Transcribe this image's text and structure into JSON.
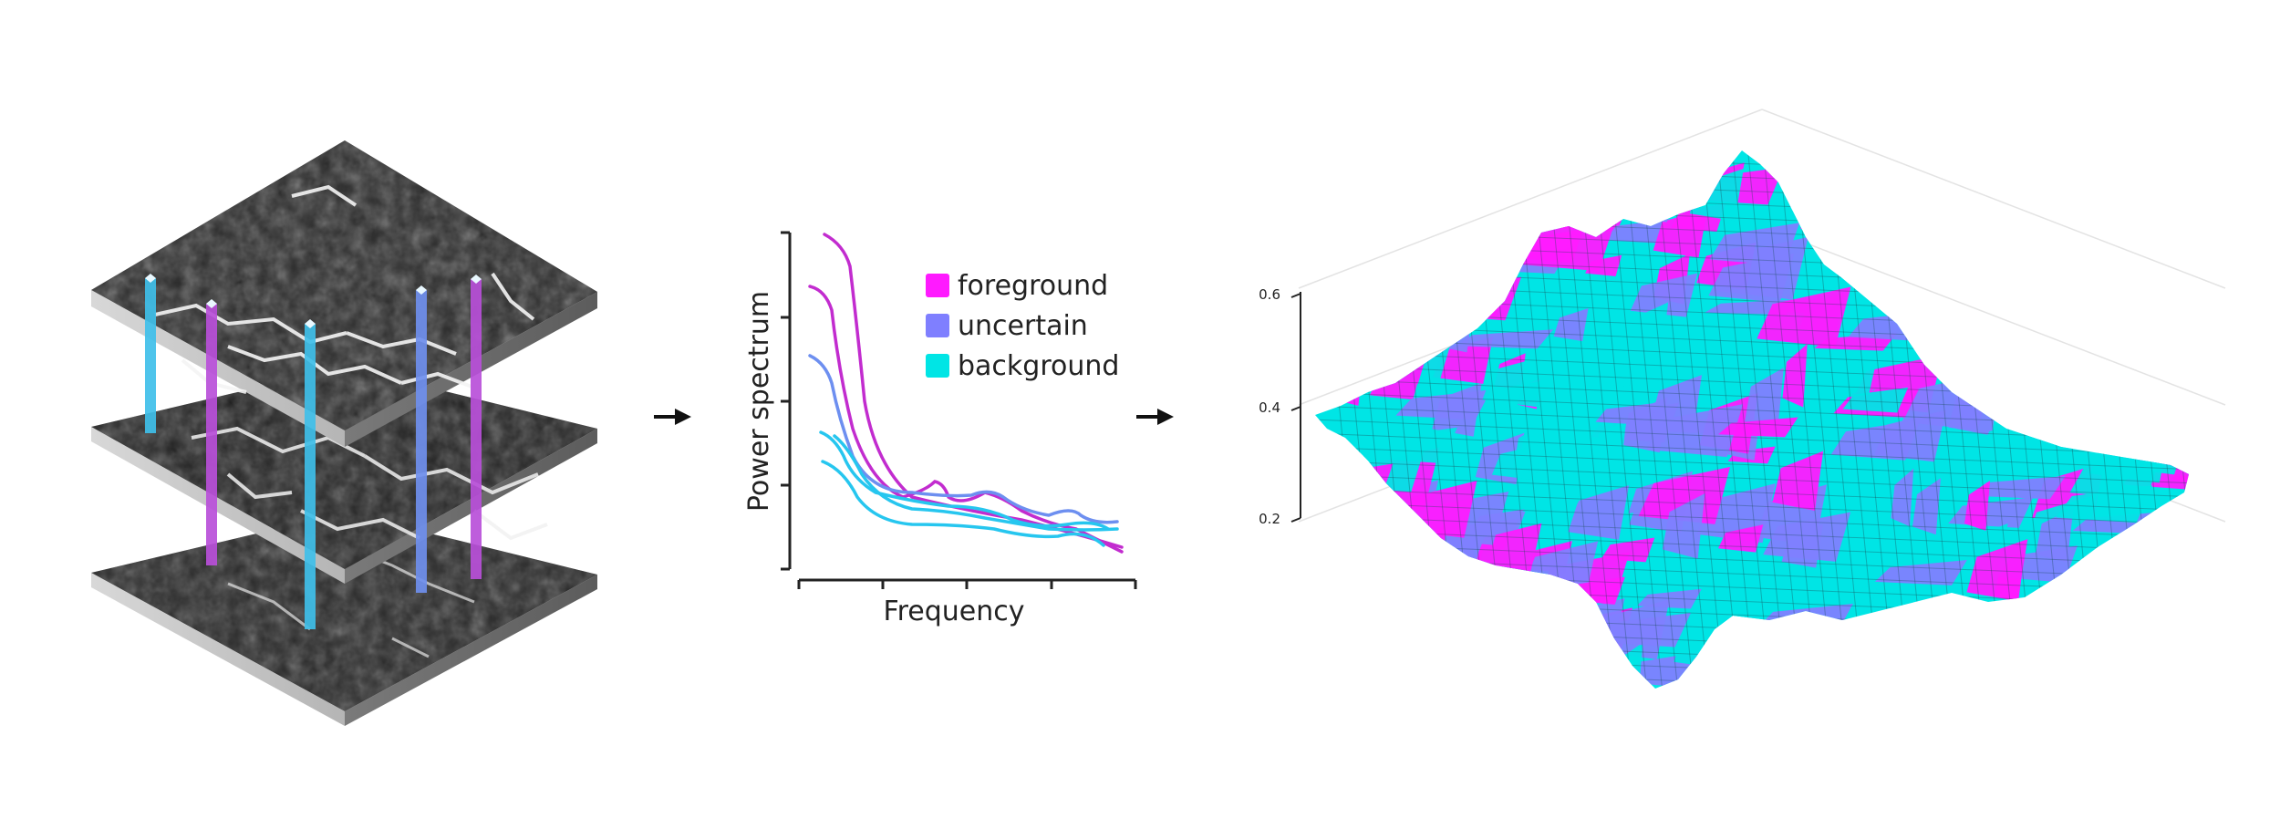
{
  "panel_chart": {
    "xlabel": "Frequency",
    "ylabel": "Power spectrum",
    "legend": [
      {
        "label": "foreground",
        "color": "#ff1aff"
      },
      {
        "label": "uncertain",
        "color": "#7f7fff"
      },
      {
        "label": "background",
        "color": "#00e5e5"
      }
    ],
    "line_colors": {
      "foreground": "#c22ccf",
      "uncertain": "#6d8ff0",
      "background": "#26c6ef"
    }
  },
  "panel_surface": {
    "z_ticks": [
      "0.6",
      "0.4",
      "0.2"
    ],
    "colors": {
      "foreground": "#ff1aff",
      "uncertain": "#7f7fff",
      "background": "#00e5e5"
    }
  },
  "stack": {
    "pillar_colors": [
      "#3fbfe9",
      "#b94fd9",
      "#3fbfe9",
      "#6f8fee",
      "#b94fd9"
    ]
  }
}
